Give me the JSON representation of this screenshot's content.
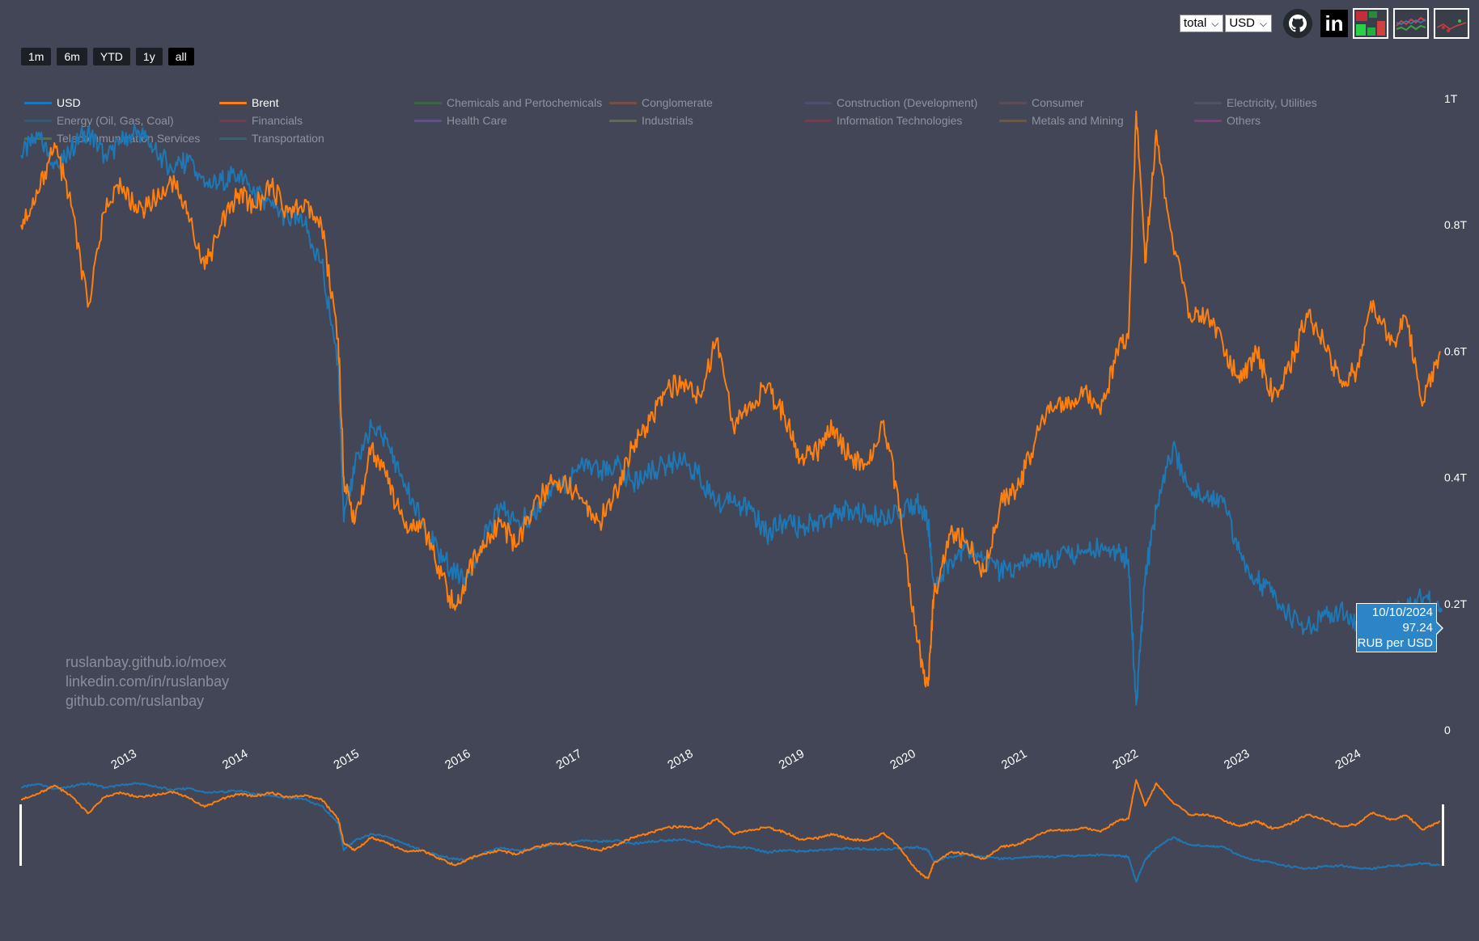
{
  "range_buttons": [
    {
      "label": "1m",
      "active": false
    },
    {
      "label": "6m",
      "active": false
    },
    {
      "label": "YTD",
      "active": false
    },
    {
      "label": "1y",
      "active": false
    },
    {
      "label": "all",
      "active": true
    }
  ],
  "controls": {
    "mode_select": "total",
    "currency_select": "USD",
    "github_icon": "github-icon",
    "linkedin_icon": "linkedin-icon",
    "linkedin_text": "in"
  },
  "legend": [
    {
      "label": "USD",
      "color": "#1f77b4",
      "shown": true
    },
    {
      "label": "Brent",
      "color": "#ff7f0e",
      "shown": true
    },
    {
      "label": "Chemicals and Pertochemicals",
      "color": "#2ca02c",
      "shown": false
    },
    {
      "label": "Conglomerate",
      "color": "#d6642a",
      "shown": false
    },
    {
      "label": "Construction (Development)",
      "color": "#6a5fa0",
      "shown": false
    },
    {
      "label": "Consumer",
      "color": "#8c5a58",
      "shown": false
    },
    {
      "label": "Electricity, Utilities",
      "color": "#6e6e80",
      "shown": false
    },
    {
      "label": "Energy (Oil, Gas, Coal)",
      "color": "#2f7f95",
      "shown": false
    },
    {
      "label": "Financials",
      "color": "#a04050",
      "shown": false
    },
    {
      "label": "Health Care",
      "color": "#9a6bde",
      "shown": false
    },
    {
      "label": "Industrials",
      "color": "#9ab060",
      "shown": false
    },
    {
      "label": "Information Technologies",
      "color": "#c0304a",
      "shown": false
    },
    {
      "label": "Metals and Mining",
      "color": "#b07a40",
      "shown": false
    },
    {
      "label": "Others",
      "color": "#c050a8",
      "shown": false
    },
    {
      "label": "Telecommunication Services",
      "color": "#6cc04a",
      "shown": false
    },
    {
      "label": "Transportation",
      "color": "#3f8f9a",
      "shown": false
    }
  ],
  "watermark": [
    "ruslanbay.github.io/moex",
    "linkedin.com/in/ruslanbay",
    "github.com/ruslanbay"
  ],
  "tooltip": {
    "date": "10/10/2024",
    "value": "97.24",
    "unit": "RUB per USD",
    "color": "#2b85c6"
  },
  "chart_data": {
    "type": "line",
    "y_axis_side": "right",
    "y_ticks": [
      "0",
      "0.2T",
      "0.4T",
      "0.6T",
      "0.8T",
      "1T"
    ],
    "y_tick_values": [
      0,
      0.2,
      0.4,
      0.6,
      0.8,
      1.0
    ],
    "ylim": [
      0,
      1.0
    ],
    "x_ticks": [
      "2013",
      "2014",
      "2015",
      "2016",
      "2017",
      "2018",
      "2019",
      "2020",
      "2021",
      "2022",
      "2023",
      "2024"
    ],
    "x_tick_values": [
      2013,
      2014,
      2015,
      2016,
      2017,
      2018,
      2019,
      2020,
      2021,
      2022,
      2023,
      2024
    ],
    "xlim": [
      2012.1,
      2024.88
    ],
    "x": [
      2012.1,
      2012.25,
      2012.4,
      2012.55,
      2012.7,
      2012.85,
      2013.0,
      2013.15,
      2013.3,
      2013.45,
      2013.6,
      2013.75,
      2013.9,
      2014.05,
      2014.2,
      2014.35,
      2014.5,
      2014.65,
      2014.8,
      2014.95,
      2015.0,
      2015.1,
      2015.25,
      2015.4,
      2015.55,
      2015.7,
      2015.85,
      2016.0,
      2016.1,
      2016.25,
      2016.4,
      2016.55,
      2016.7,
      2016.85,
      2017.0,
      2017.15,
      2017.3,
      2017.45,
      2017.6,
      2017.75,
      2017.9,
      2018.05,
      2018.2,
      2018.35,
      2018.5,
      2018.65,
      2018.8,
      2018.95,
      2019.1,
      2019.25,
      2019.4,
      2019.55,
      2019.7,
      2019.85,
      2020.0,
      2020.15,
      2020.25,
      2020.3,
      2020.45,
      2020.6,
      2020.75,
      2020.9,
      2021.05,
      2021.2,
      2021.35,
      2021.5,
      2021.65,
      2021.8,
      2021.95,
      2022.05,
      2022.12,
      2022.2,
      2022.3,
      2022.45,
      2022.6,
      2022.75,
      2022.9,
      2023.05,
      2023.2,
      2023.35,
      2023.5,
      2023.65,
      2023.8,
      2023.95,
      2024.1,
      2024.25,
      2024.4,
      2024.55,
      2024.7,
      2024.85
    ],
    "series": [
      {
        "name": "USD",
        "color": "#1f77b4",
        "values": [
          0.91,
          0.94,
          0.9,
          0.92,
          0.95,
          0.91,
          0.93,
          0.95,
          0.92,
          0.89,
          0.9,
          0.86,
          0.87,
          0.88,
          0.85,
          0.83,
          0.81,
          0.8,
          0.74,
          0.58,
          0.33,
          0.42,
          0.48,
          0.45,
          0.39,
          0.33,
          0.28,
          0.25,
          0.24,
          0.3,
          0.35,
          0.33,
          0.34,
          0.38,
          0.39,
          0.42,
          0.41,
          0.42,
          0.39,
          0.41,
          0.42,
          0.43,
          0.4,
          0.36,
          0.36,
          0.35,
          0.31,
          0.33,
          0.32,
          0.33,
          0.34,
          0.35,
          0.34,
          0.34,
          0.35,
          0.36,
          0.33,
          0.23,
          0.27,
          0.29,
          0.27,
          0.25,
          0.26,
          0.27,
          0.27,
          0.28,
          0.28,
          0.29,
          0.28,
          0.27,
          0.04,
          0.24,
          0.35,
          0.45,
          0.38,
          0.37,
          0.36,
          0.28,
          0.24,
          0.21,
          0.18,
          0.16,
          0.18,
          0.19,
          0.17,
          0.16,
          0.19,
          0.19,
          0.21,
          0.19
        ]
      },
      {
        "name": "Brent",
        "color": "#ff7f0e",
        "values": [
          0.8,
          0.85,
          0.93,
          0.83,
          0.67,
          0.82,
          0.86,
          0.82,
          0.84,
          0.87,
          0.82,
          0.73,
          0.8,
          0.85,
          0.83,
          0.86,
          0.82,
          0.84,
          0.8,
          0.62,
          0.4,
          0.33,
          0.45,
          0.39,
          0.32,
          0.33,
          0.26,
          0.19,
          0.24,
          0.3,
          0.33,
          0.29,
          0.35,
          0.39,
          0.39,
          0.36,
          0.33,
          0.38,
          0.45,
          0.49,
          0.54,
          0.55,
          0.53,
          0.62,
          0.48,
          0.52,
          0.54,
          0.5,
          0.43,
          0.44,
          0.48,
          0.43,
          0.42,
          0.49,
          0.35,
          0.14,
          0.07,
          0.21,
          0.31,
          0.3,
          0.25,
          0.36,
          0.38,
          0.45,
          0.52,
          0.51,
          0.54,
          0.5,
          0.6,
          0.62,
          0.98,
          0.74,
          0.95,
          0.77,
          0.66,
          0.66,
          0.61,
          0.55,
          0.6,
          0.53,
          0.57,
          0.66,
          0.62,
          0.55,
          0.57,
          0.68,
          0.61,
          0.65,
          0.52,
          0.6
        ]
      }
    ]
  }
}
